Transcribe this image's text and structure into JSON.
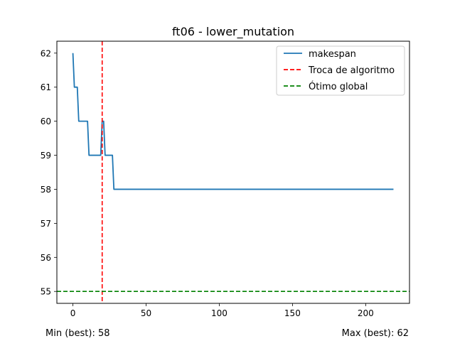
{
  "chart_data": {
    "type": "line",
    "title": "ft06 - lower_mutation",
    "xlabel": "",
    "ylabel": "",
    "xlim": [
      -10.95,
      229.95
    ],
    "ylim": [
      54.65,
      62.35
    ],
    "xticks": [
      0,
      50,
      100,
      150,
      200
    ],
    "yticks": [
      55,
      56,
      57,
      58,
      59,
      60,
      61,
      62
    ],
    "grid": false,
    "legend_position": "top-right",
    "series": [
      {
        "name": "makespan",
        "color": "#1f77b4",
        "style": "solid",
        "x": [
          0,
          1,
          2,
          3,
          4,
          5,
          6,
          7,
          8,
          9,
          10,
          11,
          12,
          13,
          14,
          15,
          16,
          17,
          18,
          19,
          20,
          21,
          22,
          23,
          24,
          25,
          26,
          27,
          28,
          29,
          30,
          219
        ],
        "y": [
          62,
          61,
          61,
          61,
          60,
          60,
          60,
          60,
          60,
          60,
          60,
          59,
          59,
          59,
          59,
          59,
          59,
          59,
          59,
          59,
          60,
          60,
          59,
          59,
          59,
          59,
          59,
          59,
          58,
          58,
          58,
          58
        ]
      }
    ],
    "reference_lines": [
      {
        "name": "Troca de algoritmo",
        "orientation": "vertical",
        "value": 20,
        "color": "#ff0000",
        "style": "dashed"
      },
      {
        "name": "Ótimo global",
        "orientation": "horizontal",
        "value": 55,
        "color": "#008000",
        "style": "dashed"
      }
    ]
  },
  "footer": {
    "min_text": "Min (best): 58",
    "max_text": "Max (best): 62"
  }
}
